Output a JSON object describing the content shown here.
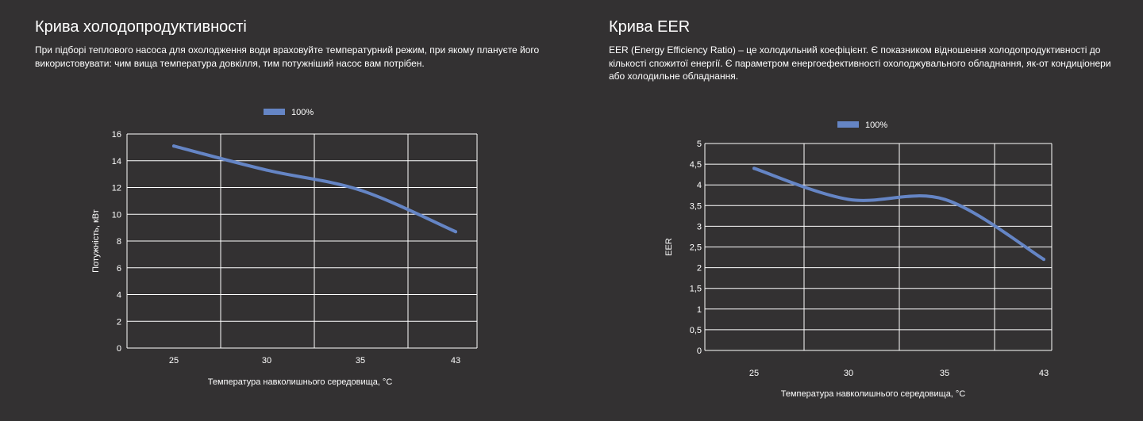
{
  "colors": {
    "background": "#333132",
    "series": "#6585c5",
    "grid": "#ffffff",
    "text": "#ffffff"
  },
  "left": {
    "title": "Крива холодопродуктивності",
    "description": "При підборі теплового насоса для охолодження води враховуйте температурний режим, при якому плануєте його використовувати: чим вища температура довкілля, тим потужніший насос вам потрібен."
  },
  "right": {
    "title": "Крива EER",
    "description": "EER (Energy Efficiency Ratio) – це холодильний коефіцієнт. Є показником відношення холодопродуктивності до кількості спожитої енергії. Є параметром енергоефективності охолоджувального обладнання, як-от кондиціонери або холодильне обладнання."
  },
  "chart_data": [
    {
      "type": "line",
      "categories": [
        "25",
        "30",
        "35",
        "43"
      ],
      "series": [
        {
          "name": "100%",
          "values": [
            15.1,
            13.3,
            11.8,
            8.7
          ]
        }
      ],
      "xlabel": "Температура навколишнього середовища, °C",
      "ylabel": "Потужність, кВт",
      "yticks": [
        "0",
        "2",
        "4",
        "6",
        "8",
        "10",
        "12",
        "14",
        "16"
      ],
      "ylim": [
        0,
        16
      ],
      "grid": true,
      "legend": "top-center"
    },
    {
      "type": "line",
      "categories": [
        "25",
        "30",
        "35",
        "43"
      ],
      "series": [
        {
          "name": "100%",
          "values": [
            4.4,
            3.65,
            3.65,
            2.2
          ]
        }
      ],
      "xlabel": "Температура навколишнього середовища, °C",
      "ylabel": "EER",
      "yticks": [
        "0",
        "0,5",
        "1",
        "1,5",
        "2",
        "2,5",
        "3",
        "3,5",
        "4",
        "4,5",
        "5"
      ],
      "ylim": [
        0,
        5
      ],
      "grid": true,
      "legend": "top-center"
    }
  ]
}
